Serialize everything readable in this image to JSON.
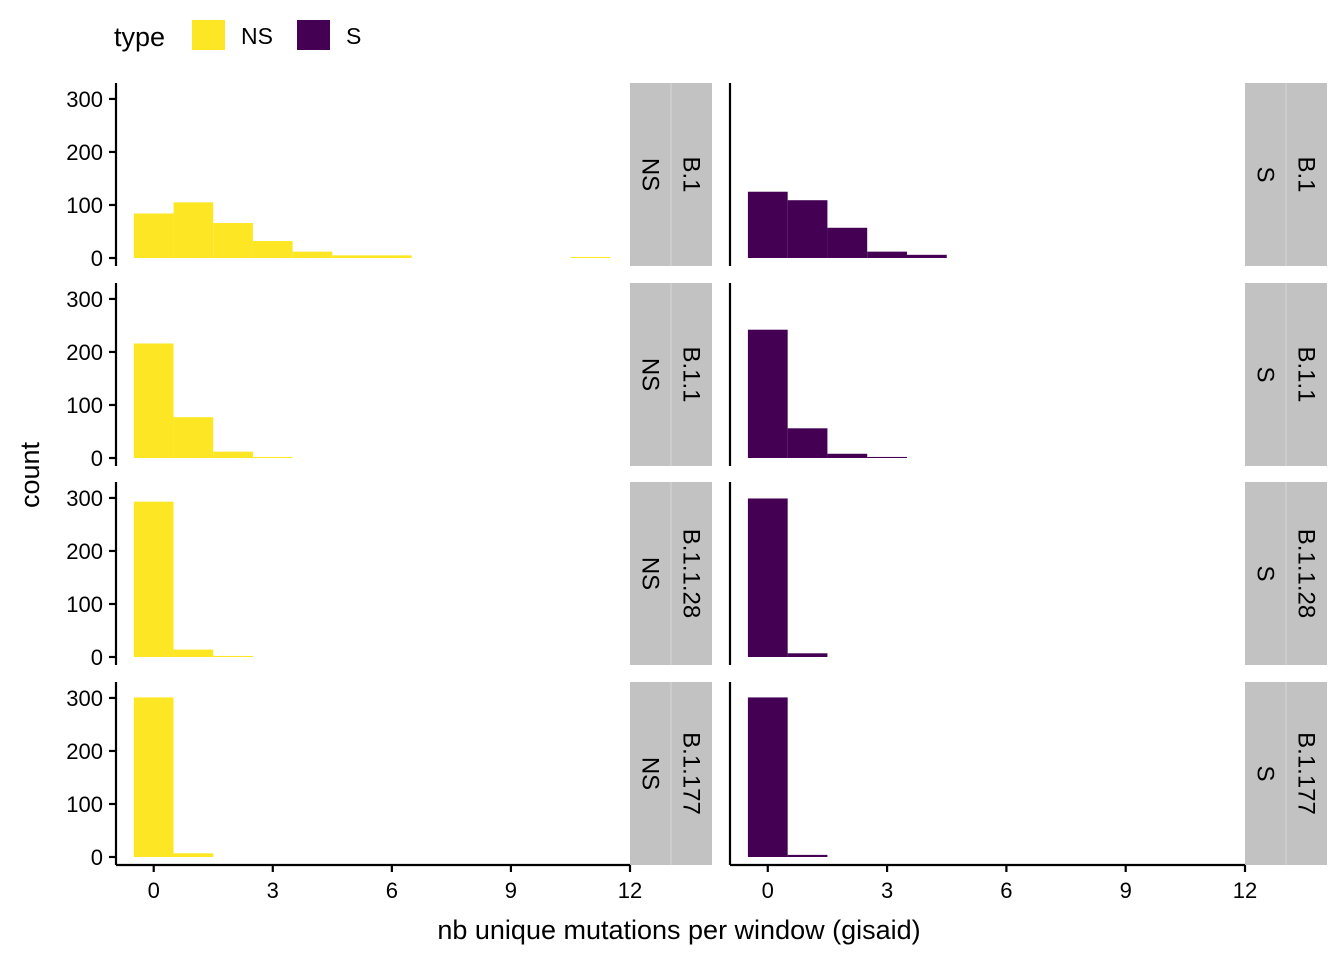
{
  "chart_data": {
    "type": "bar",
    "subtype": "faceted-histogram",
    "xlabel": "nb unique mutations per window (gisaid)",
    "ylabel": "count",
    "legend": {
      "title": "type",
      "position": "top-left",
      "entries": [
        {
          "label": "NS",
          "color": "#fde725"
        },
        {
          "label": "S",
          "color": "#440154"
        }
      ]
    },
    "xlim": [
      -0.95,
      12.0
    ],
    "ylim": [
      0,
      315
    ],
    "x_ticks": [
      0,
      3,
      6,
      9,
      12
    ],
    "x_tick_labels": [
      "0",
      "3",
      "6",
      "9",
      "12"
    ],
    "y_ticks": [
      0,
      100,
      200,
      300
    ],
    "y_tick_labels": [
      "0",
      "100",
      "200",
      "300"
    ],
    "bin_width": 1,
    "grid": false,
    "row_strip_labels": [
      "B.1",
      "B.1.1",
      "B.1.1.28",
      "B.1.177"
    ],
    "column_strip_labels": [
      "NS",
      "S"
    ],
    "facets": [
      {
        "row": 0,
        "col": 0,
        "lineage": "B.1",
        "type": "NS",
        "color": "#fde725",
        "bins": [
          [
            0,
            84
          ],
          [
            1,
            105
          ],
          [
            2,
            66
          ],
          [
            3,
            32
          ],
          [
            4,
            12
          ],
          [
            5,
            5
          ],
          [
            6,
            5
          ],
          [
            11,
            2
          ]
        ]
      },
      {
        "row": 0,
        "col": 1,
        "lineage": "B.1",
        "type": "S",
        "color": "#440154",
        "bins": [
          [
            0,
            125
          ],
          [
            1,
            109
          ],
          [
            2,
            57
          ],
          [
            3,
            12
          ],
          [
            4,
            6
          ]
        ]
      },
      {
        "row": 1,
        "col": 0,
        "lineage": "B.1.1",
        "type": "NS",
        "color": "#fde725",
        "bins": [
          [
            0,
            216
          ],
          [
            1,
            77
          ],
          [
            2,
            12
          ],
          [
            3,
            2
          ]
        ]
      },
      {
        "row": 1,
        "col": 1,
        "lineage": "B.1.1",
        "type": "S",
        "color": "#440154",
        "bins": [
          [
            0,
            242
          ],
          [
            1,
            56
          ],
          [
            2,
            8
          ],
          [
            3,
            2
          ]
        ]
      },
      {
        "row": 2,
        "col": 0,
        "lineage": "B.1.1.28",
        "type": "NS",
        "color": "#fde725",
        "bins": [
          [
            0,
            293
          ],
          [
            1,
            14
          ],
          [
            2,
            2
          ]
        ]
      },
      {
        "row": 2,
        "col": 1,
        "lineage": "B.1.1.28",
        "type": "S",
        "color": "#440154",
        "bins": [
          [
            0,
            299
          ],
          [
            1,
            7
          ]
        ]
      },
      {
        "row": 3,
        "col": 0,
        "lineage": "B.1.177",
        "type": "NS",
        "color": "#fde725",
        "bins": [
          [
            0,
            301
          ],
          [
            1,
            7
          ]
        ]
      },
      {
        "row": 3,
        "col": 1,
        "lineage": "B.1.177",
        "type": "S",
        "color": "#440154",
        "bins": [
          [
            0,
            301
          ],
          [
            1,
            4
          ]
        ]
      }
    ]
  }
}
